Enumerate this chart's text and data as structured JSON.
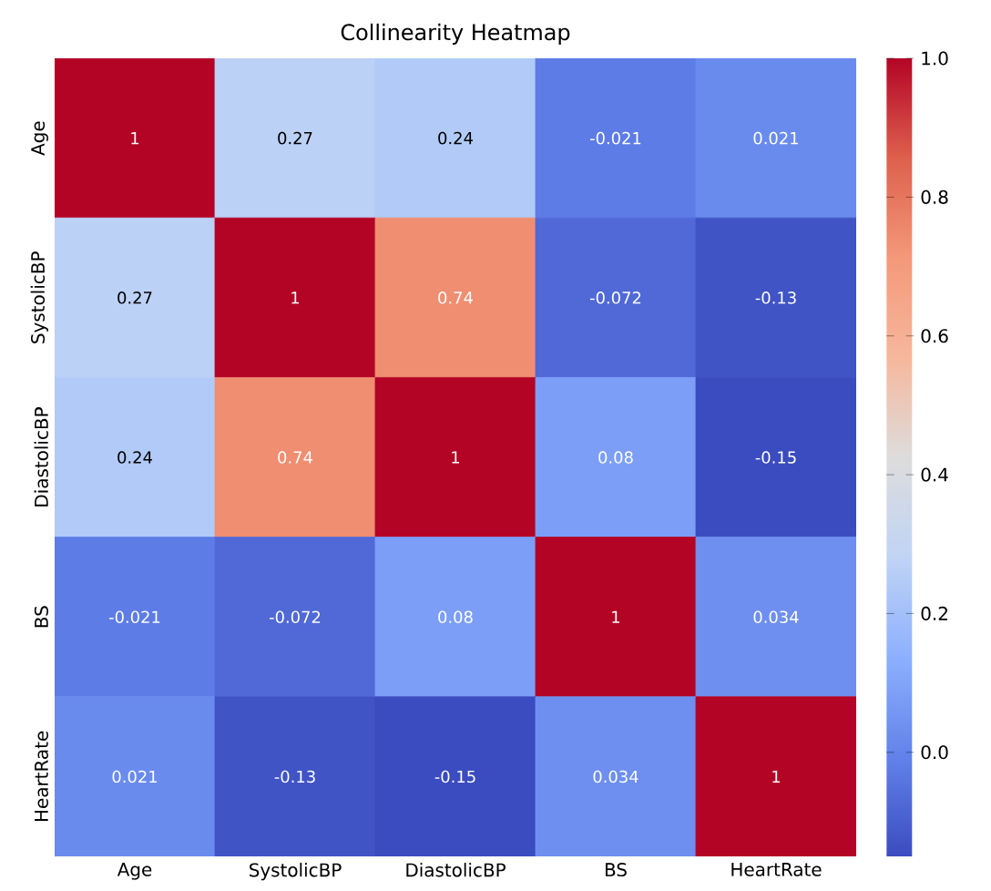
{
  "chart_data": {
    "type": "heatmap",
    "title": "Collinearity Heatmap",
    "categories": [
      "Age",
      "SystolicBP",
      "DiastolicBP",
      "BS",
      "HeartRate"
    ],
    "y_categories": [
      "Age",
      "SystolicBP",
      "DiastolicBP",
      "BS",
      "HeartRate"
    ],
    "cells": [
      [
        1,
        0.27,
        0.24,
        -0.021,
        0.021
      ],
      [
        0.27,
        1,
        0.74,
        -0.072,
        -0.13
      ],
      [
        0.24,
        0.74,
        1,
        0.08,
        -0.15
      ],
      [
        -0.021,
        -0.072,
        0.08,
        1,
        0.034
      ],
      [
        0.021,
        -0.13,
        -0.15,
        0.034,
        1
      ]
    ],
    "clim": [
      -0.15,
      1
    ],
    "cticks": [
      {
        "value": 0.0,
        "label": "0.0"
      },
      {
        "value": 0.2,
        "label": "0.2"
      },
      {
        "value": 0.4,
        "label": "0.4"
      },
      {
        "value": 0.6,
        "label": "0.6"
      },
      {
        "value": 0.8,
        "label": "0.8"
      },
      {
        "value": 1.0,
        "label": "1.0"
      }
    ],
    "data_labels": true
  }
}
